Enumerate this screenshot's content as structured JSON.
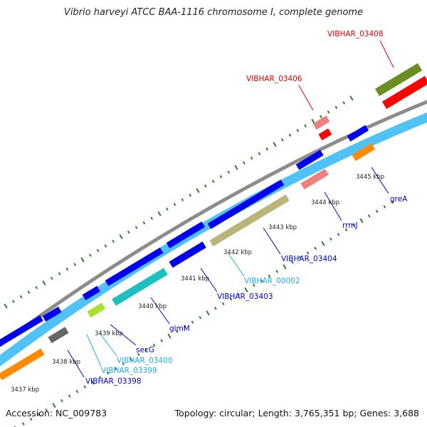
{
  "title": "Vibrio harveyi ATCC BAA-1116 chromosome I, complete genome",
  "footer": {
    "accession": "Accession: NC_009783",
    "info": "Topology: circular; Length: 3,765,351 bp; Genes: 3,688"
  },
  "colors": {
    "background": "#ffffff",
    "backbone": "#8c8c8c",
    "cds_blue": "#0000ee",
    "track_lightblue": "#4fc3f7",
    "tick_green": "#2e7d32",
    "label_red": "#e00000",
    "label_blue": "#0000cc",
    "label_cyan": "#22aaee"
  },
  "kbp_ticks": [
    "3437 kbp",
    "3438 kbp",
    "3439 kbp",
    "3440 kbp",
    "3441 kbp",
    "3442 kbp",
    "3443 kbp",
    "3444 kbp",
    "3445 kbp"
  ],
  "gene_labels": [
    {
      "id": "VIBHAR_03408",
      "color": "red"
    },
    {
      "id": "VIBHAR_03406",
      "color": "red"
    },
    {
      "id": "greA",
      "color": "blue"
    },
    {
      "id": "rrmJ",
      "color": "blue"
    },
    {
      "id": "VIBHAR_03404",
      "color": "blue"
    },
    {
      "id": "VIBHAR_00002",
      "color": "cyan"
    },
    {
      "id": "VIBHAR_03403",
      "color": "blue"
    },
    {
      "id": "glmM",
      "color": "blue"
    },
    {
      "id": "secG",
      "color": "blue"
    },
    {
      "id": "VIBHAR_03400",
      "color": "cyan"
    },
    {
      "id": "VIBHAR_03399",
      "color": "cyan"
    },
    {
      "id": "VIBHAR_03398",
      "color": "blue"
    }
  ]
}
